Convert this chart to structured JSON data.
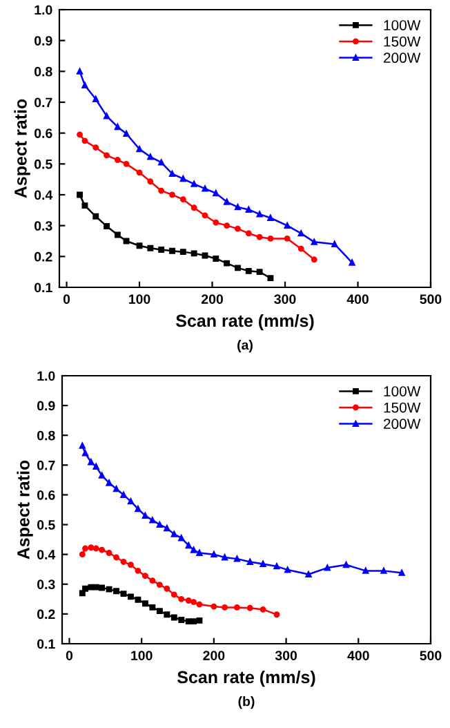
{
  "chart_data": [
    {
      "type": "line",
      "xlabel": "Scan rate (mm/s)",
      "ylabel": "Aspect ratio",
      "annotations": [
        "(a)"
      ],
      "xlim": [
        -10,
        500
      ],
      "xticks": [
        0,
        100,
        200,
        300,
        400,
        500
      ],
      "ylim": [
        0.1,
        1.0
      ],
      "yticks": [
        0.1,
        0.2,
        0.3,
        0.4,
        0.5,
        0.6,
        0.7,
        0.8,
        0.9,
        {
          "value": 1.0,
          "label": "1.0"
        }
      ],
      "legend": "top right",
      "grid": false,
      "series": [
        {
          "name": "100W",
          "color": "#000000",
          "marker": "square",
          "x": [
            18,
            25,
            40,
            55,
            70,
            82,
            100,
            115,
            130,
            145,
            160,
            175,
            190,
            205,
            220,
            235,
            250,
            265,
            280
          ],
          "values": [
            0.4,
            0.365,
            0.33,
            0.298,
            0.27,
            0.25,
            0.235,
            0.227,
            0.222,
            0.218,
            0.215,
            0.21,
            0.203,
            0.193,
            0.178,
            0.163,
            0.153,
            0.15,
            0.13
          ]
        },
        {
          "name": "150W",
          "color": "#ff0000",
          "marker": "circle",
          "x": [
            18,
            25,
            40,
            55,
            70,
            82,
            100,
            115,
            130,
            145,
            160,
            175,
            190,
            205,
            220,
            235,
            250,
            265,
            280,
            303,
            322,
            340
          ],
          "values": [
            0.595,
            0.575,
            0.553,
            0.528,
            0.513,
            0.5,
            0.472,
            0.443,
            0.413,
            0.4,
            0.385,
            0.358,
            0.333,
            0.31,
            0.3,
            0.29,
            0.275,
            0.263,
            0.258,
            0.258,
            0.225,
            0.19
          ]
        },
        {
          "name": "200W",
          "color": "#0000ff",
          "marker": "triangle",
          "x": [
            18,
            25,
            40,
            55,
            70,
            82,
            100,
            115,
            130,
            145,
            160,
            175,
            190,
            205,
            220,
            235,
            250,
            265,
            280,
            303,
            322,
            340,
            368,
            392
          ],
          "values": [
            0.8,
            0.755,
            0.71,
            0.655,
            0.62,
            0.598,
            0.548,
            0.523,
            0.505,
            0.468,
            0.452,
            0.435,
            0.42,
            0.405,
            0.377,
            0.36,
            0.352,
            0.337,
            0.325,
            0.3,
            0.275,
            0.247,
            0.24,
            0.18
          ]
        }
      ]
    },
    {
      "type": "line",
      "xlabel": "Scan rate (mm/s)",
      "ylabel": "Aspect ratio",
      "annotations": [
        "(b)"
      ],
      "xlim": [
        -10,
        500
      ],
      "xticks": [
        0,
        100,
        200,
        300,
        400,
        500
      ],
      "ylim": [
        0.1,
        1.0
      ],
      "yticks": [
        0.1,
        0.2,
        0.3,
        0.4,
        0.5,
        0.6,
        0.7,
        0.8,
        0.9,
        {
          "value": 1.0,
          "label": "1.0"
        }
      ],
      "legend": "top right",
      "grid": false,
      "series": [
        {
          "name": "100W",
          "color": "#000000",
          "marker": "square",
          "x": [
            18,
            22,
            30,
            37,
            45,
            55,
            65,
            75,
            85,
            95,
            105,
            115,
            125,
            135,
            145,
            155,
            165,
            172,
            180
          ],
          "values": [
            0.27,
            0.285,
            0.29,
            0.29,
            0.288,
            0.283,
            0.277,
            0.268,
            0.258,
            0.248,
            0.235,
            0.222,
            0.21,
            0.198,
            0.188,
            0.18,
            0.175,
            0.175,
            0.178
          ]
        },
        {
          "name": "150W",
          "color": "#ff0000",
          "marker": "circle",
          "x": [
            18,
            22,
            30,
            37,
            45,
            55,
            65,
            75,
            85,
            95,
            105,
            115,
            125,
            135,
            145,
            155,
            165,
            172,
            180,
            200,
            215,
            232,
            250,
            268,
            287
          ],
          "values": [
            0.4,
            0.42,
            0.423,
            0.42,
            0.415,
            0.405,
            0.39,
            0.375,
            0.365,
            0.345,
            0.328,
            0.312,
            0.298,
            0.285,
            0.265,
            0.25,
            0.245,
            0.24,
            0.232,
            0.225,
            0.222,
            0.222,
            0.22,
            0.215,
            0.198
          ]
        },
        {
          "name": "200W",
          "color": "#0000ff",
          "marker": "triangle",
          "x": [
            18,
            22,
            30,
            37,
            45,
            55,
            65,
            75,
            85,
            95,
            105,
            115,
            125,
            135,
            145,
            155,
            165,
            172,
            180,
            200,
            215,
            232,
            250,
            268,
            287,
            302,
            331,
            357,
            383,
            410,
            435,
            460
          ],
          "values": [
            0.765,
            0.74,
            0.71,
            0.695,
            0.665,
            0.64,
            0.62,
            0.6,
            0.578,
            0.553,
            0.53,
            0.515,
            0.5,
            0.488,
            0.468,
            0.455,
            0.43,
            0.415,
            0.405,
            0.4,
            0.39,
            0.385,
            0.375,
            0.368,
            0.36,
            0.348,
            0.333,
            0.355,
            0.365,
            0.345,
            0.345,
            0.338
          ]
        }
      ]
    }
  ]
}
